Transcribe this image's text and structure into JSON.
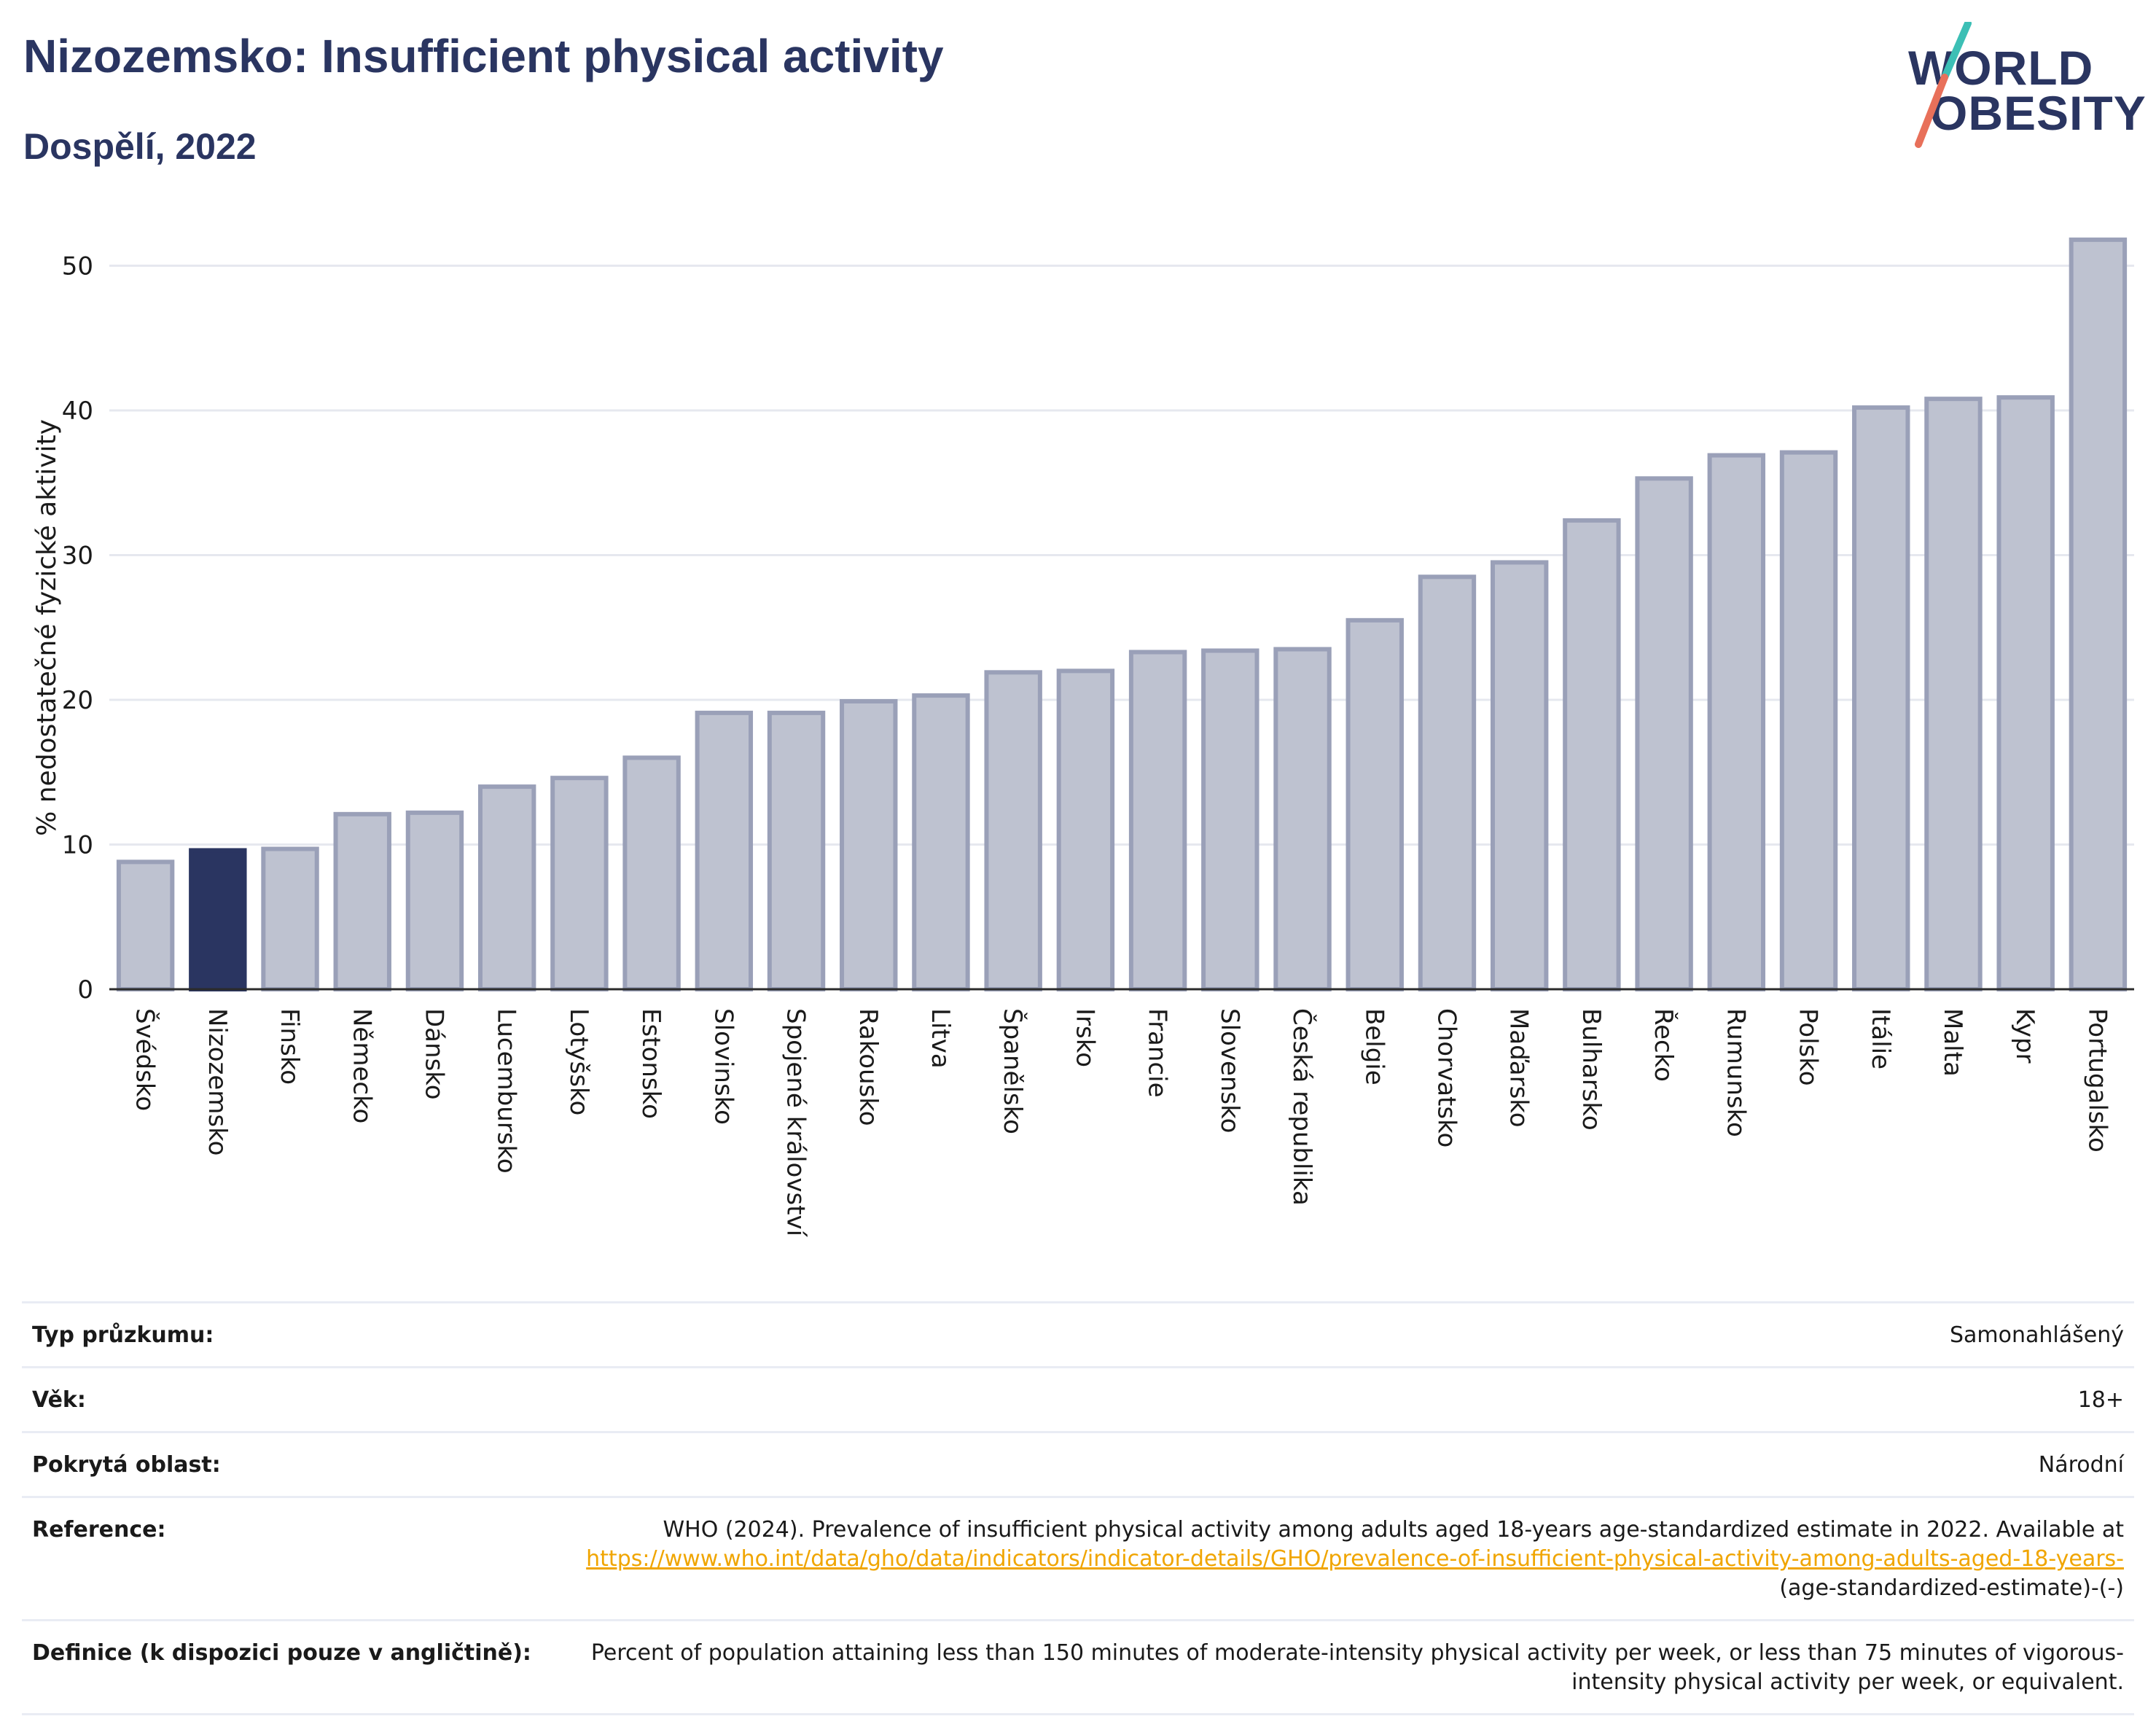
{
  "header": {
    "title": "Nizozemsko: Insufficient physical activity",
    "subtitle": "Dospělí, 2022",
    "logo_line1": "WORLD",
    "logo_line2": "OBESITY"
  },
  "colors": {
    "title": "#2a3561",
    "bar_default": "#bec2d0",
    "bar_border": "#9aa0b8",
    "bar_highlight": "#2a3561",
    "link": "#f0a500",
    "logo_accent_teal": "#3cbfb5",
    "logo_accent_red": "#e8705a"
  },
  "chart_data": {
    "type": "bar",
    "ylabel": "% nedostatečné fyzické aktivity",
    "xlabel": "",
    "ylim": [
      0,
      53
    ],
    "yticks": [
      0,
      10,
      20,
      30,
      40,
      50
    ],
    "grid": true,
    "highlight": "Nizozemsko",
    "categories": [
      "Švédsko",
      "Nizozemsko",
      "Finsko",
      "Německo",
      "Dánsko",
      "Lucembursko",
      "Lotyšsko",
      "Estonsko",
      "Slovinsko",
      "Spojené království",
      "Rakousko",
      "Litva",
      "Španělsko",
      "Irsko",
      "Francie",
      "Slovensko",
      "Česká republika",
      "Belgie",
      "Chorvatsko",
      "Maďarsko",
      "Bulharsko",
      "Řecko",
      "Rumunsko",
      "Polsko",
      "Itálie",
      "Malta",
      "Kypr",
      "Portugalsko"
    ],
    "values": [
      8.8,
      9.6,
      9.7,
      12.1,
      12.2,
      14.0,
      14.6,
      16.0,
      19.1,
      19.1,
      19.9,
      20.3,
      21.9,
      22.0,
      23.3,
      23.4,
      23.5,
      25.5,
      28.5,
      29.5,
      32.4,
      35.3,
      36.9,
      37.1,
      40.2,
      40.8,
      40.9,
      51.8
    ]
  },
  "meta": {
    "survey_type_label": "Typ průzkumu:",
    "survey_type_value": "Samonahlášený",
    "age_label": "Věk:",
    "age_value": "18+",
    "area_label": "Pokrytá oblast:",
    "area_value": "Národní",
    "reference_label": "Reference:",
    "reference_text": "WHO (2024). Prevalence of insufficient physical activity among adults aged 18-years age-standardized estimate in 2022. Available at",
    "reference_link": "https://www.who.int/data/gho/data/indicators/indicator-details/GHO/prevalence-of-insufficient-physical-activity-among-adults-aged-18-years-",
    "reference_suffix": "(age-standardized-estimate)-(-)",
    "definition_label": "Definice (k dispozici pouze v angličtině):",
    "definition_value": "Percent of population attaining less than 150 minutes of moderate-intensity physical activity per week, or less than 75 minutes of vigorous-intensity physical activity per week, or equivalent."
  }
}
